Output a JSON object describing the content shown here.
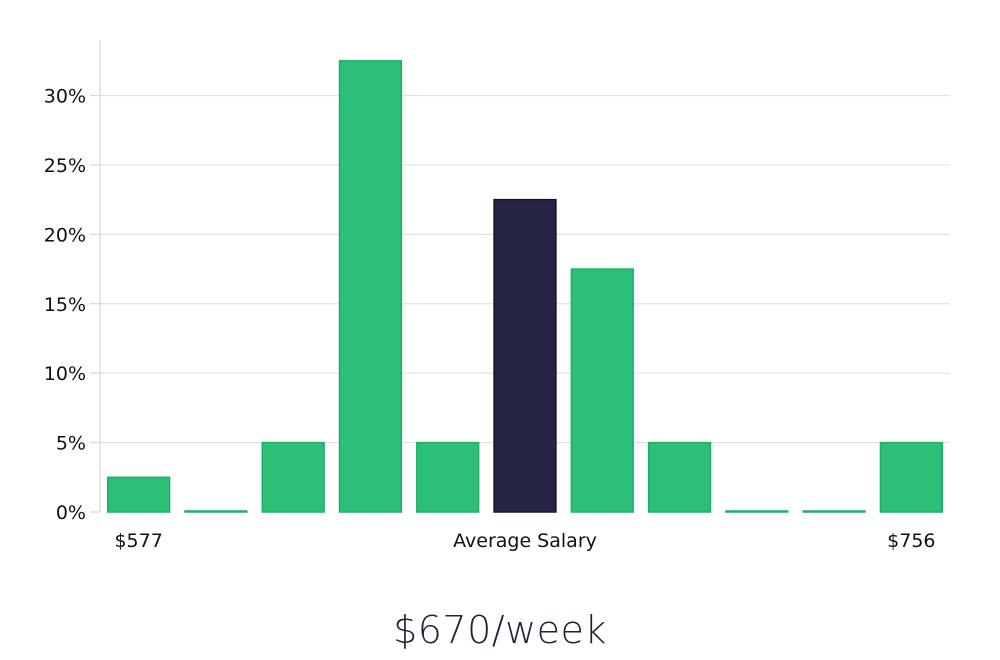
{
  "chart_data": {
    "type": "bar",
    "categories": [
      "$577",
      "",
      "",
      "",
      "",
      "Average Salary",
      "",
      "",
      "",
      "",
      "$756"
    ],
    "values": [
      2.5,
      0,
      5,
      32.5,
      5,
      22.5,
      17.5,
      5,
      0,
      0,
      5
    ],
    "highlight_index": 5,
    "ylim": [
      0,
      34
    ],
    "y_ticks": [
      0,
      5,
      10,
      15,
      20,
      25,
      30
    ],
    "y_tick_labels": [
      "0%",
      "5%",
      "10%",
      "15%",
      "20%",
      "25%",
      "30%"
    ],
    "grid": true,
    "colors": {
      "bar": "#2bbf77",
      "bar_edge": "#1fae68",
      "highlight": "#272546",
      "highlight_edge": "#14132b",
      "grid": "#e2e2e2",
      "axis": "#d6d6d6",
      "text": "#111111"
    },
    "title": "",
    "xlabel": "",
    "ylabel": ""
  },
  "footer": {
    "salary": "$670/week"
  }
}
